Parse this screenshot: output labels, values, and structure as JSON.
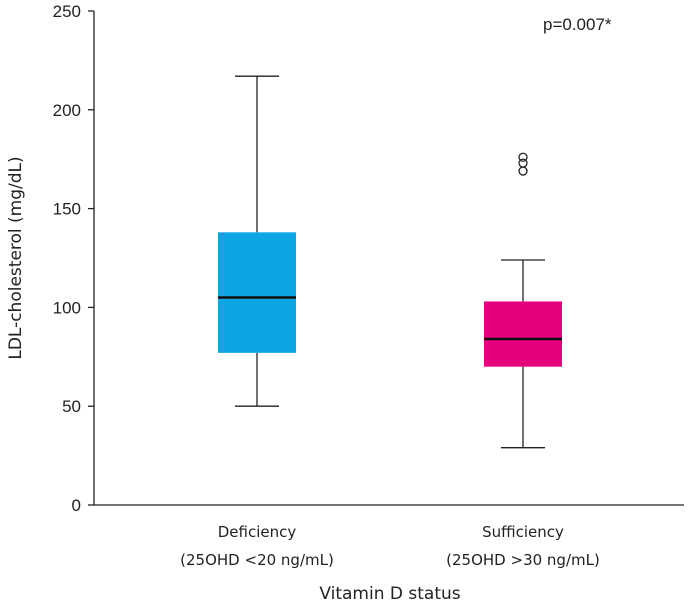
{
  "chart_data": {
    "type": "box",
    "title": "",
    "xlabel": "Vitamin D status",
    "ylabel": "LDL-cholesterol (mg/dL)",
    "ylim": [
      0,
      250
    ],
    "yticks": [
      0,
      50,
      100,
      150,
      200,
      250
    ],
    "annotation": "p=0.007*",
    "categories": [
      {
        "line1": "Deficiency",
        "line2": "(25OHD <20 ng/mL)"
      },
      {
        "line1": "Sufficiency",
        "line2": "(25OHD >30 ng/mL)"
      }
    ],
    "series": [
      {
        "name": "Deficiency",
        "color": "#0ea5e4",
        "whisker_low": 50,
        "q1": 77,
        "median": 105,
        "q3": 138,
        "whisker_high": 217,
        "outliers": []
      },
      {
        "name": "Sufficiency",
        "color": "#e6007e",
        "whisker_low": 29,
        "q1": 70,
        "median": 84,
        "q3": 103,
        "whisker_high": 124,
        "outliers": [
          169,
          173,
          176
        ]
      }
    ]
  }
}
